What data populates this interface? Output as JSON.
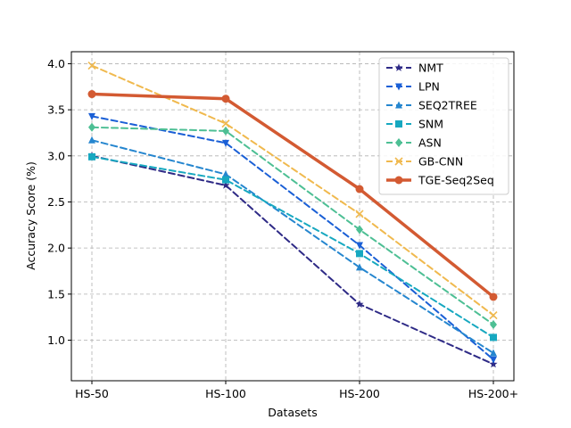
{
  "chart_data": {
    "type": "line",
    "title": "",
    "xlabel": "Datasets",
    "ylabel": "Accuracy Score (%)",
    "categories": [
      "HS-50",
      "HS-100",
      "HS-200",
      "HS-200+"
    ],
    "ylim": [
      0.56,
      4.13
    ],
    "yticks": [
      "1.0",
      "1.5",
      "2.0",
      "2.5",
      "3.0",
      "3.5",
      "4.0"
    ],
    "grid": true,
    "legend_position": "top-right",
    "series": [
      {
        "name": "NMT",
        "values": [
          3.0,
          2.68,
          1.39,
          0.74
        ],
        "color": "#2e2a86",
        "marker": "star",
        "dashed": true,
        "width": 2
      },
      {
        "name": "LPN",
        "values": [
          3.43,
          3.14,
          2.03,
          0.79
        ],
        "color": "#1a5fd6",
        "marker": "triangle-down",
        "dashed": true,
        "width": 2
      },
      {
        "name": "SEQ2TREE",
        "values": [
          3.17,
          2.8,
          1.79,
          0.86
        ],
        "color": "#2586cf",
        "marker": "triangle-up",
        "dashed": true,
        "width": 2
      },
      {
        "name": "SNM",
        "values": [
          2.99,
          2.74,
          1.94,
          1.03
        ],
        "color": "#17a8c0",
        "marker": "square",
        "dashed": true,
        "width": 2
      },
      {
        "name": "ASN",
        "values": [
          3.31,
          3.27,
          2.2,
          1.17
        ],
        "color": "#4dbf94",
        "marker": "diamond",
        "dashed": true,
        "width": 2
      },
      {
        "name": "GB-CNN",
        "values": [
          3.98,
          3.35,
          2.37,
          1.27
        ],
        "color": "#f0b94e",
        "marker": "x",
        "dashed": true,
        "width": 2
      },
      {
        "name": "TGE-Seq2Seq",
        "values": [
          3.67,
          3.62,
          2.64,
          1.47
        ],
        "color": "#d35a32",
        "marker": "circle",
        "dashed": false,
        "width": 3.5
      }
    ]
  }
}
